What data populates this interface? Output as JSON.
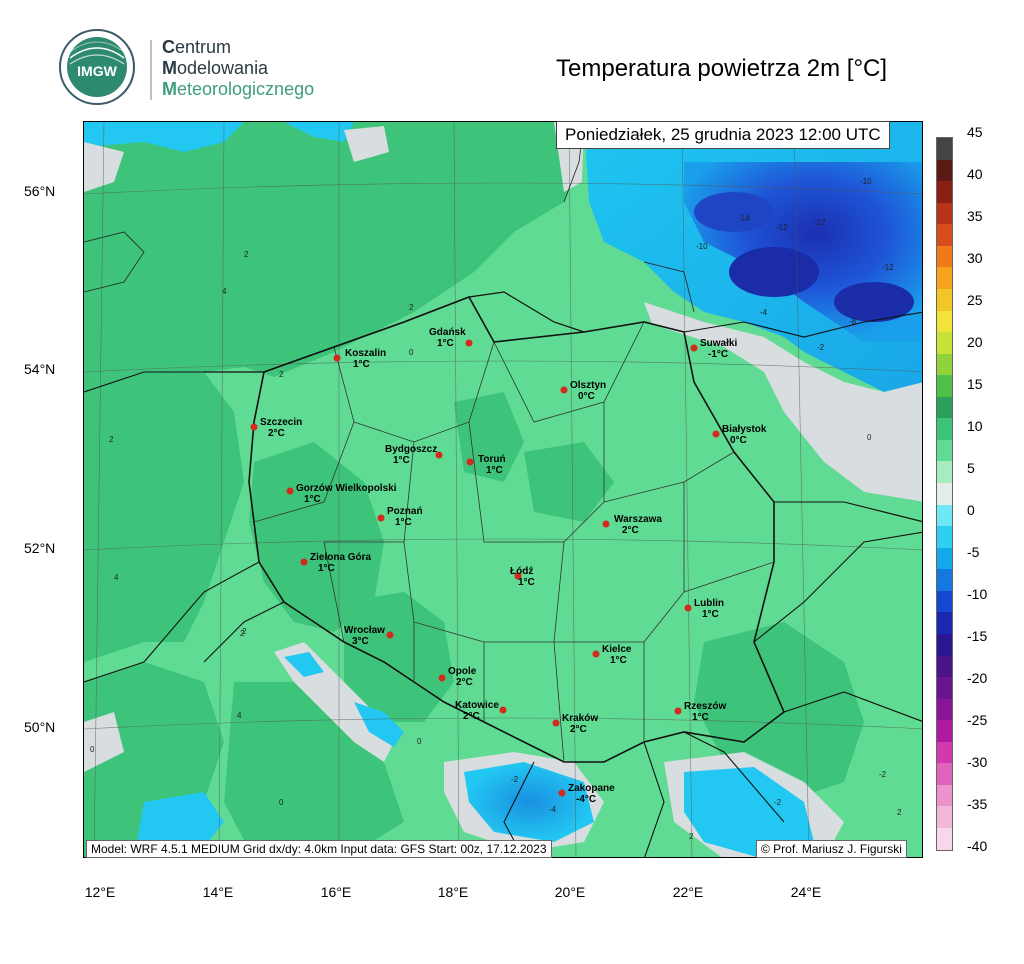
{
  "logo": {
    "badge_text": "IMGW",
    "line1_initial": "C",
    "line1_rest": "entrum",
    "line2_initial": "M",
    "line2_rest": "odelowania",
    "line3_initial": "M",
    "line3_rest": "eteorologicznego"
  },
  "title": "Temperatura powietrza 2m [°C]",
  "date": "Poniedziałek, 25 grudnia 2023 12:00 UTC",
  "footer": {
    "model": "Model: WRF 4.5.1 MEDIUM   Grid dx/dy: 4.0km   Input data: GFS   Start: 00z, 17.12.2023",
    "credit": "© Prof. Mariusz J. Figurski"
  },
  "lat_labels": [
    "56°N",
    "54°N",
    "52°N",
    "50°N"
  ],
  "lon_labels": [
    "12°E",
    "14°E",
    "16°E",
    "18°E",
    "20°E",
    "22°E",
    "24°E"
  ],
  "colorbar_labels": [
    "45",
    "40",
    "35",
    "30",
    "25",
    "20",
    "15",
    "10",
    "5",
    "0",
    "-5",
    "-10",
    "-15",
    "-20",
    "-25",
    "-30",
    "-35",
    "-40"
  ],
  "colors": {
    "sea_cold": "#22c8f2",
    "land_mild": "#5fdb93",
    "land_warm": "#3ec47a",
    "zero_band": "#d8dde0",
    "deep_cold": "#1a3fd0",
    "border": "#111111",
    "city_dot": "#d42a1e"
  },
  "cities": [
    {
      "name": "Gdańsk",
      "temp": "1°C"
    },
    {
      "name": "Koszalin",
      "temp": "1°C"
    },
    {
      "name": "Suwałki",
      "temp": "-1°C"
    },
    {
      "name": "Olsztyn",
      "temp": "0°C"
    },
    {
      "name": "Szczecin",
      "temp": "2°C"
    },
    {
      "name": "Białystok",
      "temp": "0°C"
    },
    {
      "name": "Bydgoszcz",
      "temp": "1°C"
    },
    {
      "name": "Toruń",
      "temp": "1°C"
    },
    {
      "name": "Gorzów Wielkopolski",
      "temp": "1°C"
    },
    {
      "name": "Poznań",
      "temp": "1°C"
    },
    {
      "name": "Warszawa",
      "temp": "2°C"
    },
    {
      "name": "Zielona Góra",
      "temp": "1°C"
    },
    {
      "name": "Łódź",
      "temp": "1°C"
    },
    {
      "name": "Lublin",
      "temp": "1°C"
    },
    {
      "name": "Wrocław",
      "temp": "3°C"
    },
    {
      "name": "Kielce",
      "temp": "1°C"
    },
    {
      "name": "Opole",
      "temp": "2°C"
    },
    {
      "name": "Katowice",
      "temp": "2°C"
    },
    {
      "name": "Rzeszów",
      "temp": "1°C"
    },
    {
      "name": "Kraków",
      "temp": "2°C"
    },
    {
      "name": "Zakopane",
      "temp": "-4°C"
    }
  ],
  "isolines": [
    "2",
    "4",
    "2",
    "0",
    "2",
    "-10",
    "-14",
    "-12",
    "-12",
    "-12",
    "-10",
    "-8",
    "-4",
    "-2",
    "0",
    "2",
    "4",
    "2",
    "0",
    "-2",
    "-4",
    "-2",
    "2",
    "0",
    "2",
    "4",
    "0",
    "-2",
    "2"
  ]
}
